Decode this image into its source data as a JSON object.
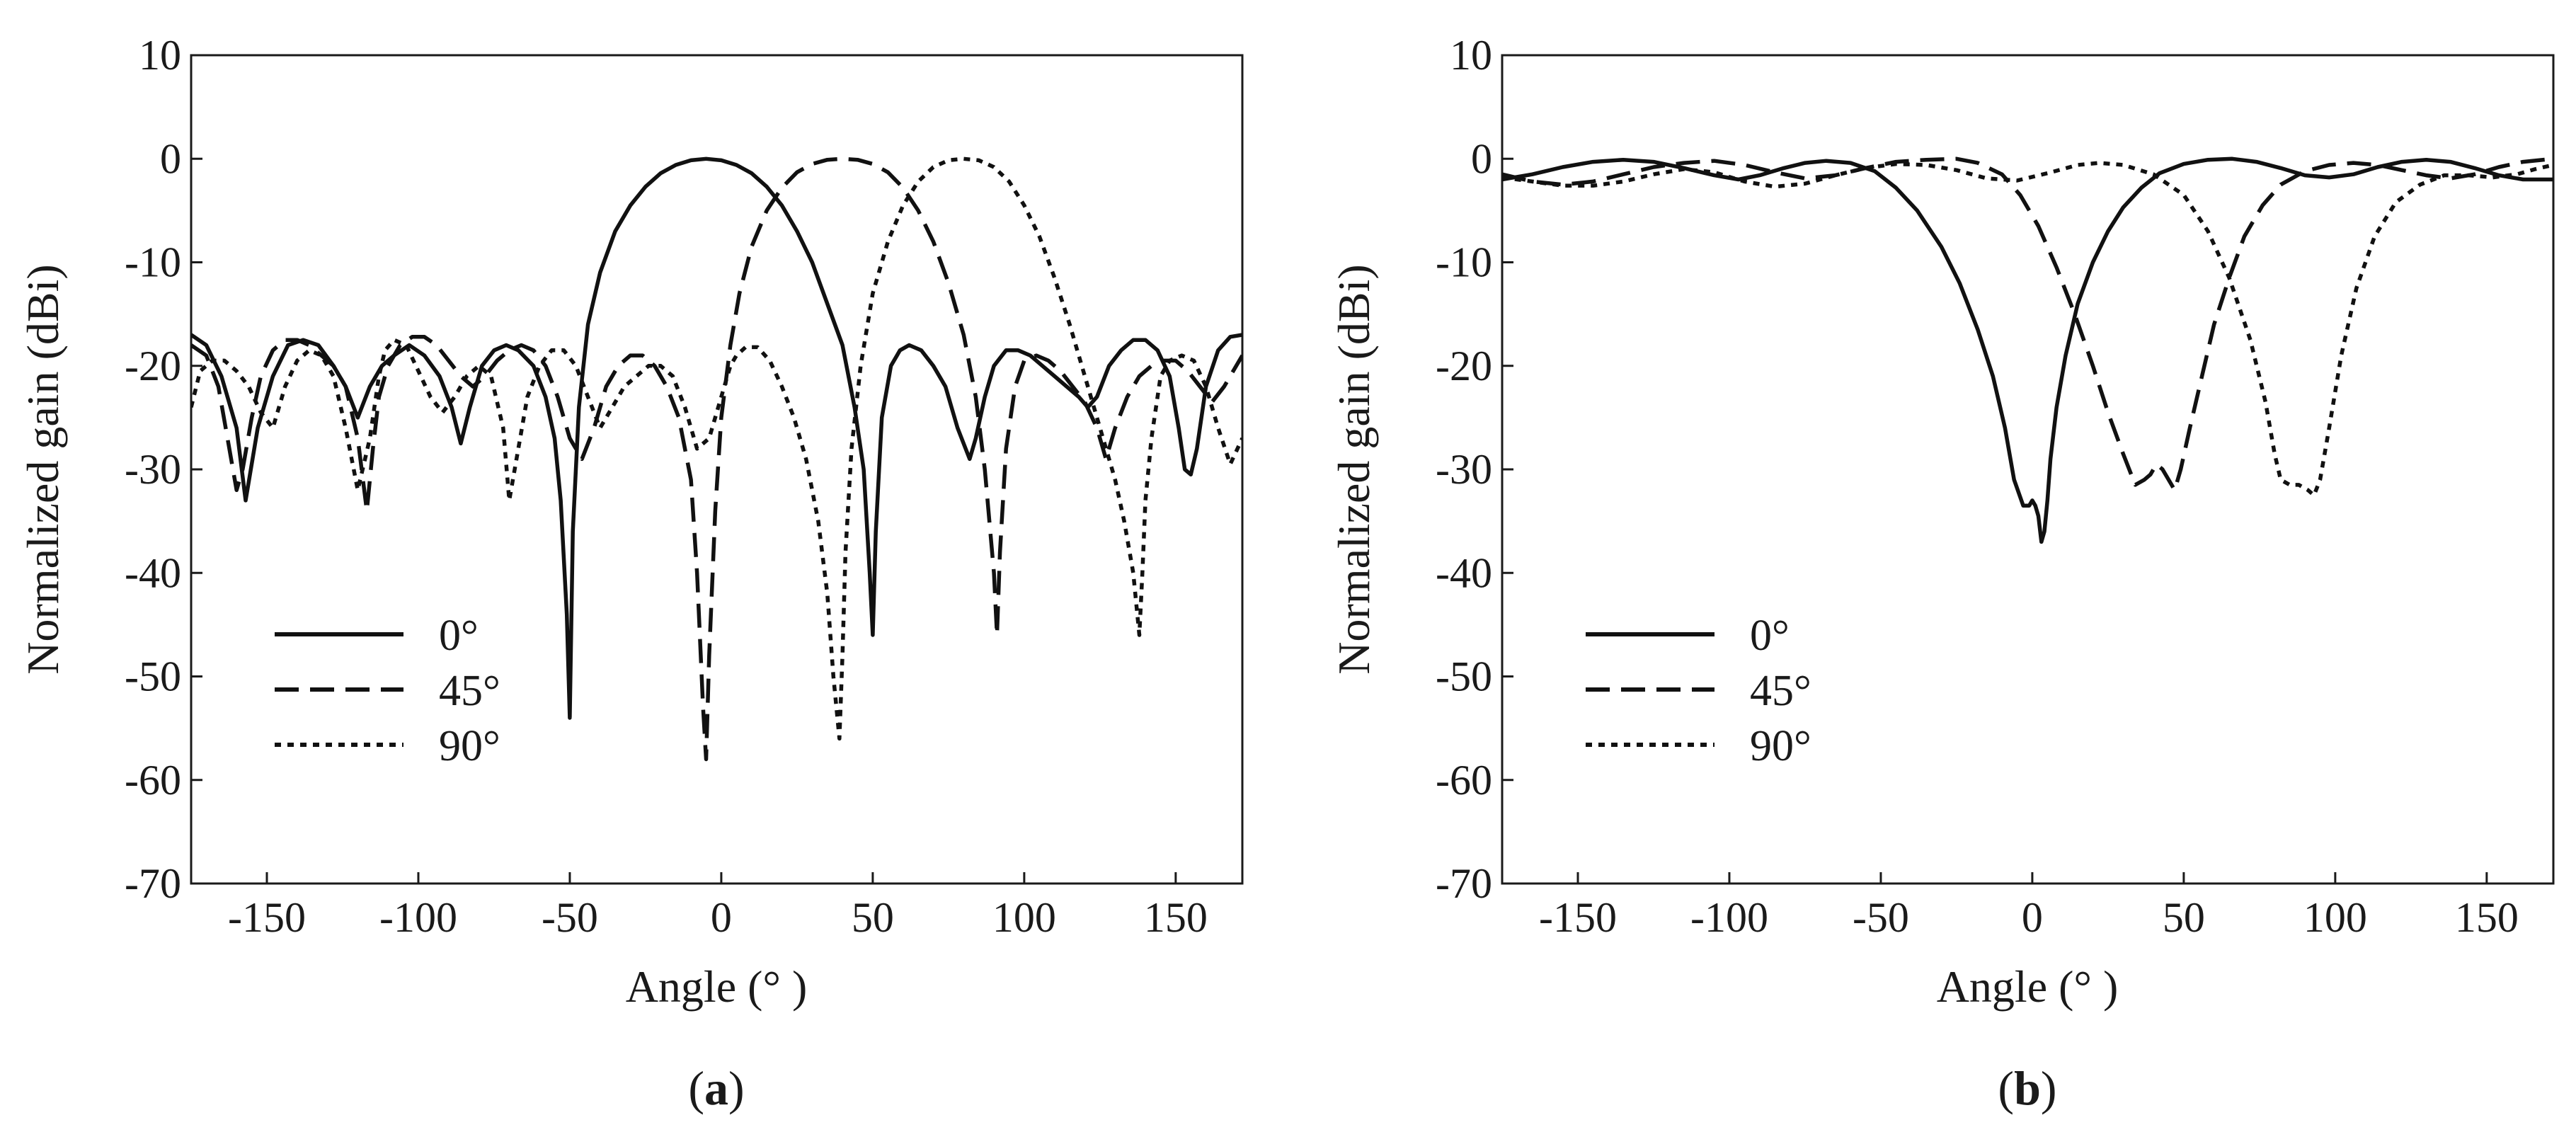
{
  "figure": {
    "panels": [
      {
        "label_open": "(",
        "label_letter": "a",
        "label_close": ")"
      },
      {
        "label_open": "(",
        "label_letter": "b",
        "label_close": ")"
      }
    ]
  },
  "chart_data": [
    {
      "type": "line",
      "panel": "a",
      "title": "",
      "xlabel": "Angle (° )",
      "ylabel": "Normalized gain (dBi)",
      "xlim": [
        -175,
        172
      ],
      "ylim": [
        -70,
        10
      ],
      "xticks": [
        -150,
        -100,
        -50,
        0,
        50,
        100,
        150
      ],
      "xtick_labels": [
        "-150",
        "-100",
        "-50",
        "0",
        "50",
        "100",
        "150"
      ],
      "yticks": [
        10,
        0,
        -10,
        -20,
        -30,
        -40,
        -50,
        -60,
        -70
      ],
      "ytick_labels": [
        "10",
        "0",
        "-10",
        "-20",
        "-30",
        "-40",
        "-50",
        "-60",
        "-70"
      ],
      "grid": false,
      "legend_position": "lower-left",
      "series": [
        {
          "name": "0°",
          "style": "solid",
          "x": [
            -175,
            -170,
            -165,
            -160,
            -157,
            -153,
            -148,
            -143,
            -138,
            -133,
            -128,
            -124,
            -120,
            -116,
            -112,
            -108,
            -103,
            -98,
            -93,
            -89,
            -86,
            -83,
            -79,
            -75,
            -71,
            -67,
            -62,
            -58,
            -55,
            -53,
            -51,
            -50,
            -49,
            -47,
            -44,
            -40,
            -35,
            -30,
            -25,
            -20,
            -15,
            -10,
            -5,
            0,
            5,
            10,
            15,
            20,
            25,
            30,
            35,
            40,
            44,
            47,
            49,
            50,
            51,
            53,
            56,
            59,
            62,
            66,
            70,
            74,
            78,
            82,
            84,
            87,
            90,
            94,
            98,
            102,
            106,
            110,
            114,
            118,
            121,
            124,
            128,
            132,
            136,
            140,
            144,
            148,
            151,
            153,
            155,
            157,
            160,
            164,
            168,
            172
          ],
          "y": [
            -17,
            -18,
            -21,
            -26,
            -33,
            -26,
            -21,
            -18,
            -17.5,
            -18,
            -20,
            -22,
            -25,
            -22,
            -20,
            -19,
            -18,
            -19,
            -21,
            -24,
            -27.5,
            -24,
            -20,
            -18.5,
            -18,
            -18.5,
            -20,
            -23,
            -27,
            -33,
            -44,
            -54,
            -36,
            -24,
            -16,
            -11,
            -7,
            -4.5,
            -2.7,
            -1.4,
            -0.6,
            -0.15,
            0,
            -0.15,
            -0.6,
            -1.4,
            -2.7,
            -4.5,
            -7,
            -10,
            -14,
            -18,
            -24,
            -30,
            -40,
            -46,
            -36,
            -25,
            -20,
            -18.5,
            -18,
            -18.5,
            -20,
            -22,
            -26,
            -29,
            -27,
            -23,
            -20,
            -18.5,
            -18.5,
            -19,
            -20,
            -21,
            -22,
            -23,
            -24,
            -23,
            -20,
            -18.5,
            -17.5,
            -17.5,
            -18.5,
            -21,
            -26,
            -30,
            -30.5,
            -28,
            -22,
            -18.5,
            -17.2,
            -17
          ],
          "labels": []
        },
        {
          "name": "45°",
          "style": "dashed",
          "x": [
            -175,
            -170,
            -166,
            -163,
            -160,
            -158,
            -155,
            -152,
            -148,
            -144,
            -140,
            -136,
            -132,
            -128,
            -124,
            -120,
            -117,
            -115,
            -113,
            -110,
            -106,
            -102,
            -98,
            -94,
            -90,
            -86,
            -82,
            -78,
            -74,
            -70,
            -66,
            -62,
            -58,
            -54,
            -50,
            -46,
            -42,
            -38,
            -34,
            -30,
            -26,
            -22,
            -18,
            -14,
            -10,
            -8,
            -6,
            -5,
            -4,
            -2,
            0,
            3,
            6,
            10,
            15,
            20,
            25,
            30,
            35,
            40,
            45,
            50,
            55,
            60,
            65,
            70,
            75,
            80,
            84,
            87,
            90,
            91,
            92,
            94,
            97,
            100,
            104,
            108,
            112,
            116,
            120,
            124,
            127,
            130,
            134,
            138,
            142,
            146,
            150,
            154,
            158,
            162,
            166,
            172
          ],
          "y": [
            -18,
            -19,
            -22,
            -27,
            -32,
            -30,
            -25,
            -21,
            -18.5,
            -17.5,
            -17.5,
            -18,
            -19,
            -20,
            -22,
            -27,
            -34,
            -28,
            -23,
            -20,
            -18,
            -17.2,
            -17.2,
            -18,
            -19.5,
            -21,
            -22,
            -21,
            -19.5,
            -18.5,
            -18,
            -18.5,
            -20,
            -23,
            -27,
            -29,
            -26,
            -22,
            -20,
            -19,
            -19,
            -20,
            -22,
            -25,
            -31,
            -40,
            -53,
            -58,
            -48,
            -34,
            -25,
            -18,
            -13,
            -8.5,
            -5,
            -2.8,
            -1.3,
            -0.5,
            -0.1,
            0,
            -0.1,
            -0.5,
            -1.3,
            -2.8,
            -5,
            -8,
            -12,
            -17,
            -23,
            -30,
            -40,
            -46,
            -38,
            -28,
            -22,
            -19.5,
            -19,
            -19.5,
            -20.5,
            -22,
            -23.5,
            -26,
            -29,
            -26,
            -23,
            -21,
            -20,
            -19.5,
            -19.5,
            -20.5,
            -22,
            -23.5,
            -22,
            -19
          ],
          "labels": []
        },
        {
          "name": "90°",
          "style": "dotted",
          "x": [
            -175,
            -172,
            -168,
            -164,
            -160,
            -156,
            -152,
            -148,
            -144,
            -140,
            -136,
            -132,
            -128,
            -124,
            -120,
            -116,
            -113,
            -111,
            -108,
            -104,
            -100,
            -96,
            -92,
            -88,
            -84,
            -80,
            -76,
            -72,
            -70,
            -67,
            -64,
            -60,
            -56,
            -52,
            -48,
            -44,
            -40,
            -36,
            -32,
            -28,
            -24,
            -20,
            -16,
            -12,
            -8,
            -4,
            0,
            3,
            5,
            8,
            12,
            16,
            20,
            24,
            28,
            32,
            35,
            37,
            39,
            40,
            41,
            43,
            46,
            50,
            55,
            60,
            65,
            70,
            75,
            80,
            85,
            90,
            95,
            100,
            105,
            110,
            115,
            120,
            125,
            130,
            133,
            136,
            138,
            139,
            140,
            142,
            145,
            148,
            152,
            156,
            160,
            164,
            168,
            172
          ],
          "y": [
            -24,
            -20.5,
            -19.5,
            -19.5,
            -20.5,
            -22,
            -24.5,
            -26,
            -22,
            -19.5,
            -18.5,
            -19,
            -21,
            -26,
            -32,
            -27,
            -21,
            -18.5,
            -17.5,
            -18,
            -20.5,
            -23,
            -24.5,
            -23,
            -21,
            -20,
            -21,
            -26,
            -33,
            -28,
            -23,
            -20,
            -18.5,
            -18.5,
            -20,
            -23,
            -26,
            -24,
            -22,
            -21,
            -20,
            -20,
            -21,
            -24,
            -28,
            -27,
            -23,
            -20,
            -19,
            -18.2,
            -18.2,
            -19.5,
            -22,
            -25,
            -29,
            -35,
            -42,
            -50,
            -56,
            -48,
            -38,
            -28,
            -20,
            -13,
            -8,
            -4.5,
            -2.2,
            -0.8,
            -0.15,
            0,
            -0.15,
            -0.8,
            -2.2,
            -4.5,
            -7.5,
            -11.5,
            -16,
            -21,
            -26,
            -31,
            -35,
            -40,
            -46,
            -40,
            -33,
            -27,
            -21,
            -19.5,
            -19,
            -19.5,
            -22,
            -26,
            -29.5,
            -27
          ],
          "labels": []
        }
      ]
    },
    {
      "type": "line",
      "panel": "b",
      "title": "",
      "xlabel": "Angle (° )",
      "ylabel": "Normalized gain (dBi)",
      "xlim": [
        -175,
        172
      ],
      "ylim": [
        -70,
        10
      ],
      "xticks": [
        -150,
        -100,
        -50,
        0,
        50,
        100,
        150
      ],
      "xtick_labels": [
        "-150",
        "-100",
        "-50",
        "0",
        "50",
        "100",
        "150"
      ],
      "yticks": [
        10,
        0,
        -10,
        -20,
        -30,
        -40,
        -50,
        -60,
        -70
      ],
      "ytick_labels": [
        "10",
        "0",
        "-10",
        "-20",
        "-30",
        "-40",
        "-50",
        "-60",
        "-70"
      ],
      "grid": false,
      "legend_position": "lower-left",
      "series": [
        {
          "name": "0°",
          "style": "solid",
          "x": [
            -175,
            -165,
            -155,
            -145,
            -135,
            -125,
            -115,
            -105,
            -97,
            -90,
            -82,
            -75,
            -68,
            -60,
            -52,
            -45,
            -38,
            -30,
            -24,
            -18,
            -13,
            -9,
            -6,
            -3,
            -1,
            0,
            1,
            2,
            3,
            4,
            5,
            6,
            8,
            11,
            15,
            20,
            25,
            30,
            36,
            42,
            50,
            58,
            66,
            74,
            82,
            90,
            98,
            106,
            114,
            122,
            130,
            138,
            146,
            154,
            162,
            172
          ],
          "y": [
            -2,
            -1.5,
            -0.8,
            -0.3,
            -0.1,
            -0.3,
            -0.9,
            -1.6,
            -2,
            -1.6,
            -0.9,
            -0.4,
            -0.2,
            -0.4,
            -1.2,
            -2.8,
            -5,
            -8.5,
            -12,
            -16.5,
            -21,
            -26,
            -31,
            -33.5,
            -33.5,
            -33,
            -33.5,
            -34.5,
            -37,
            -36,
            -33,
            -29,
            -24,
            -19,
            -14,
            -10,
            -7,
            -4.7,
            -2.8,
            -1.4,
            -0.5,
            -0.1,
            0,
            -0.3,
            -0.9,
            -1.6,
            -1.8,
            -1.5,
            -0.8,
            -0.3,
            -0.1,
            -0.3,
            -0.9,
            -1.6,
            -2,
            -2
          ]
        },
        {
          "name": "45°",
          "style": "dashed",
          "x": [
            -175,
            -165,
            -155,
            -145,
            -135,
            -125,
            -115,
            -105,
            -95,
            -85,
            -75,
            -65,
            -55,
            -45,
            -35,
            -25,
            -18,
            -10,
            -4,
            2,
            8,
            14,
            20,
            25,
            30,
            34,
            37,
            39,
            41,
            43,
            45,
            47,
            49,
            52,
            56,
            60,
            65,
            70,
            76,
            82,
            90,
            98,
            106,
            114,
            122,
            130,
            138,
            146,
            154,
            162,
            172
          ],
          "y": [
            -1.5,
            -2.2,
            -2.5,
            -2.2,
            -1.5,
            -0.8,
            -0.4,
            -0.2,
            -0.6,
            -1.3,
            -1.9,
            -1.6,
            -0.9,
            -0.3,
            -0.1,
            0,
            -0.4,
            -1.5,
            -3.5,
            -6.5,
            -10.5,
            -15,
            -20,
            -24.5,
            -28.5,
            -31.5,
            -31,
            -30.5,
            -29.5,
            -30,
            -31,
            -32,
            -30,
            -26,
            -21,
            -16,
            -11.5,
            -7.5,
            -4.5,
            -2.5,
            -1.2,
            -0.6,
            -0.4,
            -0.6,
            -1.1,
            -1.6,
            -1.9,
            -1.5,
            -0.8,
            -0.3,
            0
          ]
        },
        {
          "name": "90°",
          "style": "dotted",
          "x": [
            -175,
            -165,
            -155,
            -145,
            -135,
            -125,
            -115,
            -105,
            -95,
            -85,
            -75,
            -65,
            -55,
            -45,
            -35,
            -25,
            -15,
            -5,
            5,
            15,
            22,
            30,
            40,
            50,
            58,
            65,
            72,
            77,
            80,
            82,
            85,
            88,
            91,
            93,
            95,
            98,
            102,
            107,
            113,
            120,
            128,
            136,
            144,
            152,
            160,
            166,
            172
          ],
          "y": [
            -1.8,
            -2.2,
            -2.6,
            -2.6,
            -2.2,
            -1.5,
            -1,
            -1.3,
            -2.2,
            -2.7,
            -2.4,
            -1.6,
            -0.9,
            -0.5,
            -0.6,
            -1.1,
            -1.9,
            -2.1,
            -1.4,
            -0.6,
            -0.4,
            -0.6,
            -1.5,
            -3.5,
            -7,
            -11.5,
            -17.5,
            -23.5,
            -28.5,
            -31,
            -31.5,
            -31.5,
            -32,
            -32.5,
            -31,
            -26,
            -19,
            -12.5,
            -7.5,
            -4.2,
            -2.5,
            -1.6,
            -1.6,
            -1.8,
            -1.5,
            -1,
            -0.6
          ]
        }
      ]
    }
  ]
}
